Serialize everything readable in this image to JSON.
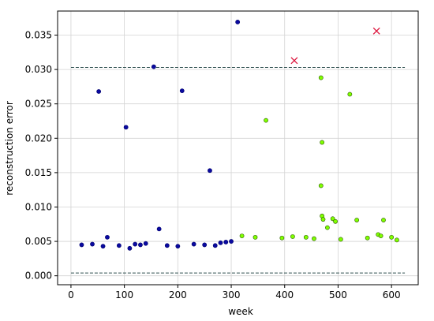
{
  "chart_data": {
    "type": "scatter",
    "title": "",
    "xlabel": "week",
    "ylabel": "reconstruction error",
    "xlim": [
      -25,
      650
    ],
    "ylim": [
      -0.0013,
      0.0385
    ],
    "xticks": [
      0,
      100,
      200,
      300,
      400,
      500,
      600
    ],
    "yticks": [
      0.0,
      0.005,
      0.01,
      0.015,
      0.02,
      0.025,
      0.03,
      0.035
    ],
    "ytick_labels": [
      "0.000",
      "0.005",
      "0.010",
      "0.015",
      "0.020",
      "0.025",
      "0.030",
      "0.035"
    ],
    "grid": true,
    "threshold_lines": [
      {
        "y": 0.0303,
        "x_from": 0,
        "x_to": 625,
        "color": "#2f4f4f",
        "style": "dashed"
      },
      {
        "y": 0.0004,
        "x_from": 0,
        "x_to": 625,
        "color": "#2f4f4f",
        "style": "dashed"
      }
    ],
    "series": [
      {
        "marker": "circle",
        "color": "#0a0aa0",
        "edge": "#00006b",
        "x": [
          52,
          103,
          155,
          208,
          260,
          312,
          165,
          68,
          300,
          290,
          280,
          230,
          250,
          140,
          120,
          180,
          20,
          40,
          90,
          130,
          200,
          270,
          110,
          60
        ],
        "y": [
          0.0268,
          0.0216,
          0.0304,
          0.0269,
          0.0153,
          0.0369,
          0.0068,
          0.0056,
          0.005,
          0.0049,
          0.0048,
          0.0046,
          0.0045,
          0.0047,
          0.0046,
          0.0044,
          0.0045,
          0.0046,
          0.0044,
          0.0045,
          0.0043,
          0.0044,
          0.004,
          0.0043
        ]
      },
      {
        "marker": "circle",
        "color": "#7fff00",
        "edge": "#2e5a00",
        "x": [
          468,
          522,
          365,
          470,
          468,
          470,
          472,
          480,
          585,
          535,
          490,
          495,
          575,
          580,
          600,
          610,
          415,
          395,
          440,
          455,
          505,
          555,
          320,
          345
        ],
        "y": [
          0.0288,
          0.0264,
          0.0226,
          0.0194,
          0.0131,
          0.0087,
          0.0082,
          0.007,
          0.0081,
          0.0081,
          0.0083,
          0.0079,
          0.006,
          0.0058,
          0.0056,
          0.0052,
          0.0057,
          0.0055,
          0.0056,
          0.0054,
          0.0053,
          0.0055,
          0.0058,
          0.0056
        ]
      },
      {
        "marker": "x",
        "color": "#dc143c",
        "x": [
          418,
          572
        ],
        "y": [
          0.0313,
          0.0356
        ]
      }
    ]
  }
}
